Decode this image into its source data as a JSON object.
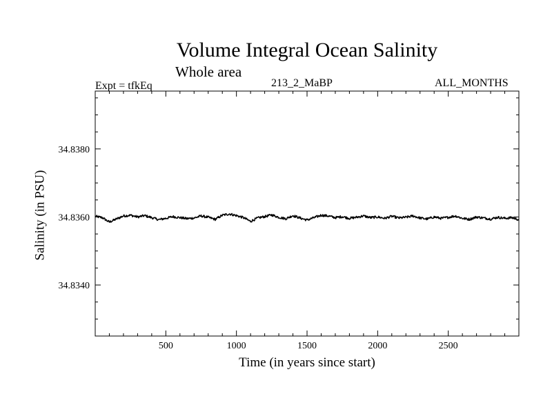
{
  "chart_data": {
    "type": "line",
    "title": "Volume Integral Ocean Salinity",
    "subtitle": "Whole area",
    "annotations": {
      "left": "Expt = tfkEq",
      "center": "213_2_MaBP",
      "right": "ALL_MONTHS"
    },
    "xlabel": "Time (in years since start)",
    "ylabel": "Salinity (in PSU)",
    "xlim": [
      0,
      3000
    ],
    "ylim": [
      34.8325,
      34.8397
    ],
    "x_ticks": [
      500,
      1000,
      1500,
      2000,
      2500
    ],
    "x_tick_labels": [
      "500",
      "1000",
      "1500",
      "2000",
      "2500"
    ],
    "y_ticks": [
      34.834,
      34.836,
      34.838
    ],
    "y_tick_labels": [
      "34.8340",
      "34.8360",
      "34.8380"
    ],
    "grid": false,
    "series": [
      {
        "x": [
          0,
          50,
          100,
          150,
          200,
          250,
          300,
          350,
          400,
          450,
          500,
          550,
          600,
          650,
          700,
          750,
          800,
          850,
          900,
          950,
          1000,
          1050,
          1100,
          1150,
          1200,
          1250,
          1300,
          1350,
          1400,
          1450,
          1500,
          1550,
          1600,
          1650,
          1700,
          1750,
          1800,
          1850,
          1900,
          1950,
          2000,
          2050,
          2100,
          2150,
          2200,
          2250,
          2300,
          2350,
          2400,
          2450,
          2500,
          2550,
          2600,
          2650,
          2700,
          2750,
          2800,
          2850,
          2900,
          2950,
          3000
        ],
        "y": [
          34.83602,
          34.83598,
          34.83585,
          34.83594,
          34.83603,
          34.83605,
          34.836,
          34.83604,
          34.83598,
          34.83592,
          34.83596,
          34.83601,
          34.83598,
          34.83595,
          34.83597,
          34.83603,
          34.83599,
          34.83593,
          34.83605,
          34.83609,
          34.83604,
          34.83598,
          34.83587,
          34.83597,
          34.83601,
          34.83606,
          34.83599,
          34.83595,
          34.83604,
          34.83597,
          34.83591,
          34.83598,
          34.83605,
          34.83603,
          34.83598,
          34.83601,
          34.83596,
          34.83599,
          34.83603,
          34.83598,
          34.836,
          34.83596,
          34.83602,
          34.83597,
          34.83599,
          34.83603,
          34.83597,
          34.83594,
          34.836,
          34.83596,
          34.83599,
          34.83603,
          34.83596,
          34.83593,
          34.836,
          34.83597,
          34.83594,
          34.83599,
          34.83596,
          34.83598,
          34.83592
        ]
      }
    ]
  }
}
